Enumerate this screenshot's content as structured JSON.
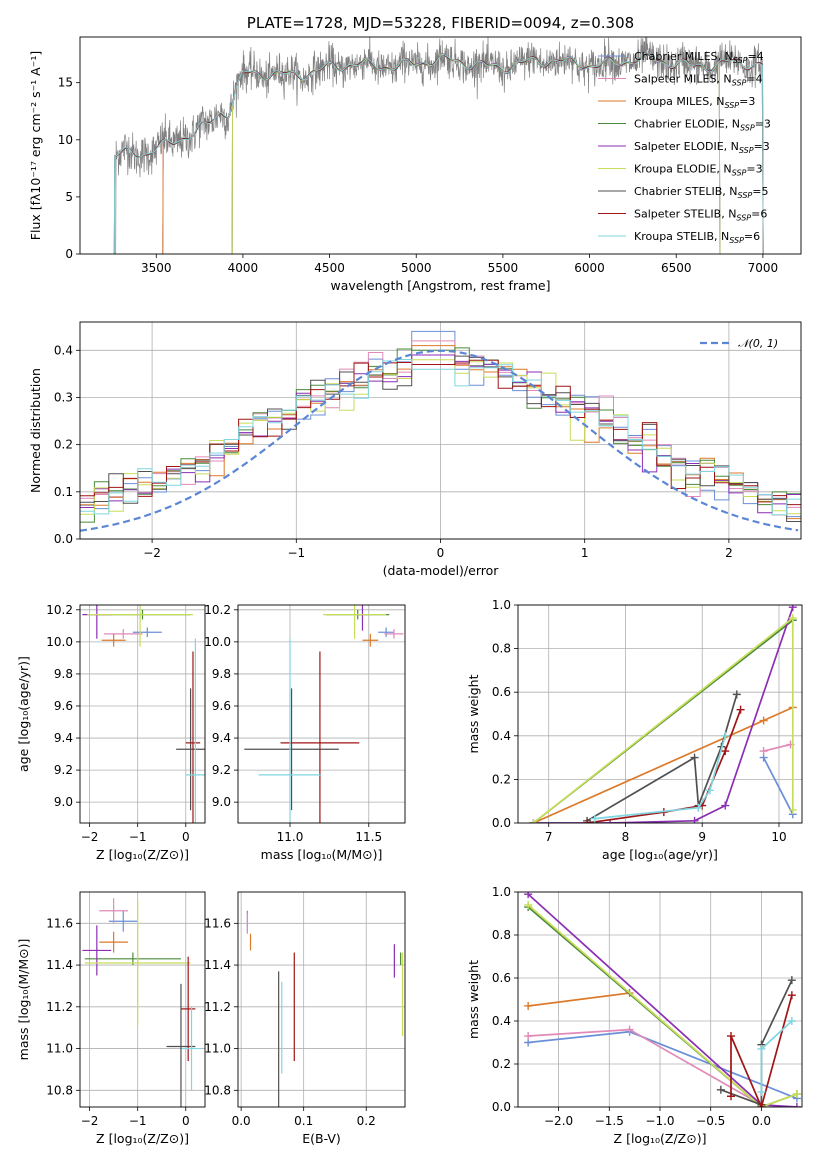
{
  "colors": {
    "Chabrier MILES": "#6a8fd8",
    "Salpeter MILES": "#e189b8",
    "Kroupa MILES": "#dc7a2a",
    "Chabrier ELODIE": "#4a8a3a",
    "Salpeter ELODIE": "#8b2fb4",
    "Kroupa ELODIE": "#c8de5a",
    "Chabrier STELIB": "#505050",
    "Salpeter STELIB": "#a01515",
    "Kroupa STELIB": "#7fd6e0",
    "data": "#808080",
    "gauss": "#5b86d6"
  },
  "chart_data": [
    {
      "id": "spectrum",
      "type": "line",
      "title": "PLATE=1728, MJD=53228, FIBERID=0094, z=0.308",
      "xlabel": "wavelength [Angstrom, rest frame]",
      "ylabel": "Flux [fλ10⁻¹⁷ erg cm⁻² s⁻¹ A⁻¹]",
      "xlim": [
        3060,
        7220
      ],
      "ylim": [
        0,
        19
      ],
      "xticks": [
        3500,
        4000,
        4500,
        5000,
        5500,
        6000,
        6500,
        7000
      ],
      "yticks": [
        0,
        5,
        10,
        15
      ],
      "grid": false,
      "legend_position": "upper-right",
      "legend": [
        {
          "label": "Chabrier MILES, N",
          "sub": "SSP",
          "suffix": "=4",
          "model": "Chabrier MILES"
        },
        {
          "label": "Salpeter MILES, N",
          "sub": "SSP",
          "suffix": "=4",
          "model": "Salpeter MILES"
        },
        {
          "label": "Kroupa MILES, N",
          "sub": "SSP",
          "suffix": "=3",
          "model": "Kroupa MILES"
        },
        {
          "label": "Chabrier ELODIE, N",
          "sub": "SSP",
          "suffix": "=3",
          "model": "Chabrier ELODIE"
        },
        {
          "label": "Salpeter ELODIE, N",
          "sub": "SSP",
          "suffix": "=3",
          "model": "Salpeter ELODIE"
        },
        {
          "label": "Kroupa ELODIE, N",
          "sub": "SSP",
          "suffix": "=3",
          "model": "Kroupa ELODIE"
        },
        {
          "label": "Chabrier STELIB, N",
          "sub": "SSP",
          "suffix": "=5",
          "model": "Chabrier STELIB"
        },
        {
          "label": "Salpeter STELIB, N",
          "sub": "SSP",
          "suffix": "=6",
          "model": "Salpeter STELIB"
        },
        {
          "label": "Kroupa STELIB, N",
          "sub": "SSP",
          "suffix": "=6",
          "model": "Kroupa STELIB"
        }
      ],
      "model_start_wavelengths": {
        "Chabrier MILES": 3540,
        "Salpeter MILES": 3540,
        "Kroupa MILES": 3540,
        "Chabrier ELODIE": 3940,
        "Salpeter ELODIE": 3940,
        "Kroupa ELODIE": 3940,
        "Chabrier STELIB": 3260,
        "Salpeter STELIB": 3260,
        "Kroupa STELIB": 3260
      },
      "model_end_wavelengths": {
        "ELODIE": 6750,
        "default": 7000
      },
      "continuum_anchors": [
        [
          3270,
          8.8
        ],
        [
          3450,
          8.6
        ],
        [
          3600,
          9.8
        ],
        [
          3700,
          10.8
        ],
        [
          3800,
          11.5
        ],
        [
          3870,
          12.5
        ],
        [
          3920,
          12.3
        ],
        [
          3960,
          14.2
        ],
        [
          4000,
          15.5
        ],
        [
          4200,
          15.8
        ],
        [
          4500,
          16.2
        ],
        [
          4800,
          16.6
        ],
        [
          5000,
          16.8
        ],
        [
          5500,
          16.6
        ],
        [
          6000,
          16.8
        ],
        [
          6500,
          16.8
        ],
        [
          7000,
          16.4
        ]
      ]
    },
    {
      "id": "residuals",
      "type": "histogram",
      "xlabel": "(data-model)/error",
      "ylabel": "Normed distribution",
      "xlim": [
        -2.5,
        2.5
      ],
      "ylim": [
        0,
        0.46
      ],
      "xticks": [
        -2,
        -1,
        0,
        1,
        2
      ],
      "yticks": [
        0.0,
        0.1,
        0.2,
        0.3,
        0.4
      ],
      "grid": true,
      "legend_position": "upper-right",
      "legend": [
        {
          "label": "𝒩(0, 1)",
          "model": "gauss"
        }
      ],
      "bin_width": 0.1,
      "peak_values": [
        0.44,
        0.42,
        0.41,
        0.4,
        0.39,
        0.38,
        0.37,
        0.37,
        0.36
      ]
    },
    {
      "id": "age-vs-Z",
      "type": "errorbar",
      "xlabel": "Z [log₁₀(Z/Z⊙)]",
      "ylabel": "age  [log₁₀(age/yr)]",
      "xlim": [
        -2.2,
        0.4
      ],
      "ylim": [
        8.87,
        10.23
      ],
      "xticks": [
        -2,
        -1,
        0
      ],
      "yticks": [
        9.0,
        9.2,
        9.4,
        9.6,
        9.8,
        10.0,
        10.2
      ],
      "grid": true,
      "points": [
        {
          "model": "Chabrier MILES",
          "x": -0.8,
          "xerr": 0.3,
          "y": 10.06,
          "yerr": 0.03
        },
        {
          "model": "Salpeter MILES",
          "x": -1.3,
          "xerr": 0.4,
          "y": 10.05,
          "yerr": 0.03
        },
        {
          "model": "Kroupa MILES",
          "x": -1.5,
          "xerr": 0.25,
          "y": 10.01,
          "yerr": 0.04
        },
        {
          "model": "Chabrier ELODIE",
          "x": -0.9,
          "xerr": 1.0,
          "y": 10.17,
          "yerr": 0.03
        },
        {
          "model": "Salpeter ELODIE",
          "x": -1.85,
          "xerr": 0.3,
          "y": 10.17,
          "yerr": 0.15
        },
        {
          "model": "Kroupa ELODIE",
          "x": -0.95,
          "xerr": 1.1,
          "y": 10.17,
          "yerr": 0.2
        },
        {
          "model": "Chabrier STELIB",
          "x": 0.1,
          "xerr": 0.3,
          "y": 9.33,
          "yerr": 0.38
        },
        {
          "model": "Salpeter STELIB",
          "x": 0.15,
          "xerr": 0.15,
          "y": 9.37,
          "yerr": 0.57
        },
        {
          "model": "Kroupa STELIB",
          "x": 0.2,
          "xerr": 0.2,
          "y": 9.17,
          "yerr": 0.85
        }
      ]
    },
    {
      "id": "age-vs-mass",
      "type": "errorbar",
      "xlabel": "mass [log₁₀(M/M⊙)]",
      "ylabel": "",
      "xlim": [
        10.67,
        11.73
      ],
      "ylim": [
        8.87,
        10.23
      ],
      "xticks": [
        11.0,
        11.5
      ],
      "yticks": [
        9.0,
        9.2,
        9.4,
        9.6,
        9.8,
        10.0,
        10.2
      ],
      "grid": true,
      "points": [
        {
          "model": "Chabrier MILES",
          "x": 11.61,
          "xerr": 0.05,
          "y": 10.06,
          "yerr": 0.03
        },
        {
          "model": "Salpeter MILES",
          "x": 11.66,
          "xerr": 0.06,
          "y": 10.05,
          "yerr": 0.03
        },
        {
          "model": "Kroupa MILES",
          "x": 11.51,
          "xerr": 0.05,
          "y": 10.01,
          "yerr": 0.04
        },
        {
          "model": "Chabrier ELODIE",
          "x": 11.43,
          "xerr": 0.2,
          "y": 10.17,
          "yerr": 0.03
        },
        {
          "model": "Salpeter ELODIE",
          "x": 11.46,
          "xerr": 0.03,
          "y": 10.17,
          "yerr": 0.1
        },
        {
          "model": "Kroupa ELODIE",
          "x": 11.41,
          "xerr": 0.2,
          "y": 10.17,
          "yerr": 0.15
        },
        {
          "model": "Chabrier STELIB",
          "x": 11.01,
          "xerr": 0.3,
          "y": 9.33,
          "yerr": 0.38
        },
        {
          "model": "Salpeter STELIB",
          "x": 11.19,
          "xerr": 0.25,
          "y": 9.37,
          "yerr": 0.57
        },
        {
          "model": "Kroupa STELIB",
          "x": 11.0,
          "xerr": 0.2,
          "y": 9.17,
          "yerr": 0.85
        }
      ]
    },
    {
      "id": "mass-weight-vs-age",
      "type": "line",
      "xlabel": "age  [log₁₀(age/yr)]",
      "ylabel": "mass weight",
      "xlim": [
        6.6,
        10.3
      ],
      "ylim": [
        0,
        1
      ],
      "xticks": [
        7,
        8,
        9,
        10
      ],
      "yticks": [
        0.0,
        0.2,
        0.4,
        0.6,
        0.8,
        1.0
      ],
      "grid": true,
      "series": [
        {
          "model": "Chabrier MILES",
          "x": [
            9.8,
            10.18
          ],
          "y": [
            0.3,
            0.04
          ]
        },
        {
          "model": "Salpeter MILES",
          "x": [
            9.8,
            10.15
          ],
          "y": [
            0.33,
            0.36
          ]
        },
        {
          "model": "Kroupa MILES",
          "x": [
            6.8,
            9.8,
            10.18
          ],
          "y": [
            0.0,
            0.47,
            0.53
          ]
        },
        {
          "model": "Chabrier ELODIE",
          "x": [
            6.8,
            10.18
          ],
          "y": [
            0.0,
            0.93
          ]
        },
        {
          "model": "Salpeter ELODIE",
          "x": [
            6.8,
            7.8,
            8.9,
            9.3,
            10.18
          ],
          "y": [
            0.0,
            0.0,
            0.01,
            0.08,
            0.99
          ]
        },
        {
          "model": "Kroupa ELODIE",
          "x": [
            6.8,
            10.18,
            10.18
          ],
          "y": [
            0.0,
            0.94,
            0.06
          ]
        },
        {
          "model": "Chabrier STELIB",
          "x": [
            7.5,
            8.9,
            8.95,
            9.25,
            9.45
          ],
          "y": [
            0.01,
            0.3,
            0.08,
            0.35,
            0.59
          ]
        },
        {
          "model": "Salpeter STELIB",
          "x": [
            7.5,
            8.5,
            9.0,
            9.3,
            9.5
          ],
          "y": [
            0.0,
            0.05,
            0.08,
            0.33,
            0.52
          ]
        },
        {
          "model": "Kroupa STELIB",
          "x": [
            7.6,
            8.95,
            9.1,
            9.3
          ],
          "y": [
            0.02,
            0.07,
            0.15,
            0.4
          ]
        }
      ]
    },
    {
      "id": "mass-vs-Z",
      "type": "errorbar",
      "xlabel": "Z [log₁₀(Z/Z⊙)]",
      "ylabel": "mass [log₁₀(M/M⊙)]",
      "xlim": [
        -2.2,
        0.4
      ],
      "ylim": [
        10.72,
        11.75
      ],
      "xticks": [
        -2,
        -1,
        0
      ],
      "yticks": [
        10.8,
        11.0,
        11.2,
        11.4,
        11.6
      ],
      "grid": true,
      "points": [
        {
          "model": "Chabrier MILES",
          "x": -1.3,
          "xerr": 0.3,
          "y": 11.61,
          "yerr": 0.05
        },
        {
          "model": "Salpeter MILES",
          "x": -1.5,
          "xerr": 0.3,
          "y": 11.66,
          "yerr": 0.06
        },
        {
          "model": "Kroupa MILES",
          "x": -1.5,
          "xerr": 0.3,
          "y": 11.51,
          "yerr": 0.05
        },
        {
          "model": "Chabrier ELODIE",
          "x": -1.1,
          "xerr": 1.0,
          "y": 11.43,
          "yerr": 0.03
        },
        {
          "model": "Salpeter ELODIE",
          "x": -1.85,
          "xerr": 0.3,
          "y": 11.47,
          "yerr": 0.12
        },
        {
          "model": "Kroupa ELODIE",
          "x": -1.0,
          "xerr": 1.1,
          "y": 11.41,
          "yerr": 0.3
        },
        {
          "model": "Chabrier STELIB",
          "x": -0.1,
          "xerr": 0.3,
          "y": 11.01,
          "yerr": 0.3
        },
        {
          "model": "Salpeter STELIB",
          "x": 0.05,
          "xerr": 0.15,
          "y": 11.19,
          "yerr": 0.25
        },
        {
          "model": "Kroupa STELIB",
          "x": 0.12,
          "xerr": 0.2,
          "y": 11.0,
          "yerr": 0.2
        }
      ]
    },
    {
      "id": "mass-vs-EBV",
      "type": "errorbar",
      "xlabel": "E(B-V)",
      "ylabel": "",
      "xlim": [
        -0.005,
        0.262
      ],
      "ylim": [
        10.72,
        11.75
      ],
      "xticks": [
        0.0,
        0.1,
        0.2
      ],
      "yticks": [
        10.8,
        11.0,
        11.2,
        11.4,
        11.6
      ],
      "grid": true,
      "points": [
        {
          "model": "Chabrier MILES",
          "x": 0.01,
          "xerr": 0.0,
          "y": 11.61,
          "yerr": 0.05
        },
        {
          "model": "Salpeter MILES",
          "x": 0.01,
          "xerr": 0.0,
          "y": 11.6,
          "yerr": 0.05
        },
        {
          "model": "Kroupa MILES",
          "x": 0.015,
          "xerr": 0.0,
          "y": 11.51,
          "yerr": 0.04
        },
        {
          "model": "Chabrier ELODIE",
          "x": 0.255,
          "xerr": 0.0,
          "y": 11.43,
          "yerr": 0.03
        },
        {
          "model": "Salpeter ELODIE",
          "x": 0.245,
          "xerr": 0.0,
          "y": 11.42,
          "yerr": 0.08
        },
        {
          "model": "Kroupa ELODIE",
          "x": 0.258,
          "xerr": 0.0,
          "y": 11.26,
          "yerr": 0.2
        },
        {
          "model": "Chabrier STELIB",
          "x": 0.06,
          "xerr": 0.0,
          "y": 11.01,
          "yerr": 0.36
        },
        {
          "model": "Salpeter STELIB",
          "x": 0.085,
          "xerr": 0.0,
          "y": 11.2,
          "yerr": 0.26
        },
        {
          "model": "Kroupa STELIB",
          "x": 0.065,
          "xerr": 0.0,
          "y": 11.1,
          "yerr": 0.22
        }
      ]
    },
    {
      "id": "mass-weight-vs-Z",
      "type": "line",
      "xlabel": "Z [log₁₀(Z/Z⊙)]",
      "ylabel": "mass weight",
      "xlim": [
        -2.4,
        0.4
      ],
      "ylim": [
        0,
        1
      ],
      "xticks": [
        -2.0,
        -1.5,
        -1.0,
        -0.5,
        0.0
      ],
      "yticks": [
        0.0,
        0.2,
        0.4,
        0.6,
        0.8,
        1.0
      ],
      "grid": true,
      "series": [
        {
          "model": "Chabrier MILES",
          "x": [
            -2.3,
            -1.3,
            0.35
          ],
          "y": [
            0.3,
            0.35,
            0.04
          ]
        },
        {
          "model": "Salpeter MILES",
          "x": [
            -2.3,
            -1.3,
            0.0
          ],
          "y": [
            0.33,
            0.36,
            0.01
          ]
        },
        {
          "model": "Kroupa MILES",
          "x": [
            -2.3,
            -1.3,
            0.0
          ],
          "y": [
            0.47,
            0.53,
            0.0
          ]
        },
        {
          "model": "Chabrier ELODIE",
          "x": [
            -2.3,
            0.0,
            0.35
          ],
          "y": [
            0.93,
            0.0,
            0.06
          ]
        },
        {
          "model": "Salpeter ELODIE",
          "x": [
            -2.3,
            0.0,
            0.35
          ],
          "y": [
            0.99,
            0.01,
            0.0
          ]
        },
        {
          "model": "Kroupa ELODIE",
          "x": [
            -2.3,
            0.0,
            0.35
          ],
          "y": [
            0.94,
            0.0,
            0.06
          ]
        },
        {
          "model": "Chabrier STELIB",
          "x": [
            -0.4,
            0.0,
            0.0,
            0.3
          ],
          "y": [
            0.08,
            0.01,
            0.29,
            0.59
          ]
        },
        {
          "model": "Salpeter STELIB",
          "x": [
            -0.3,
            -0.3,
            0.0,
            0.3
          ],
          "y": [
            0.05,
            0.33,
            0.0,
            0.52
          ]
        },
        {
          "model": "Kroupa STELIB",
          "x": [
            0.0,
            0.0,
            0.3
          ],
          "y": [
            0.07,
            0.27,
            0.4
          ]
        }
      ]
    }
  ]
}
